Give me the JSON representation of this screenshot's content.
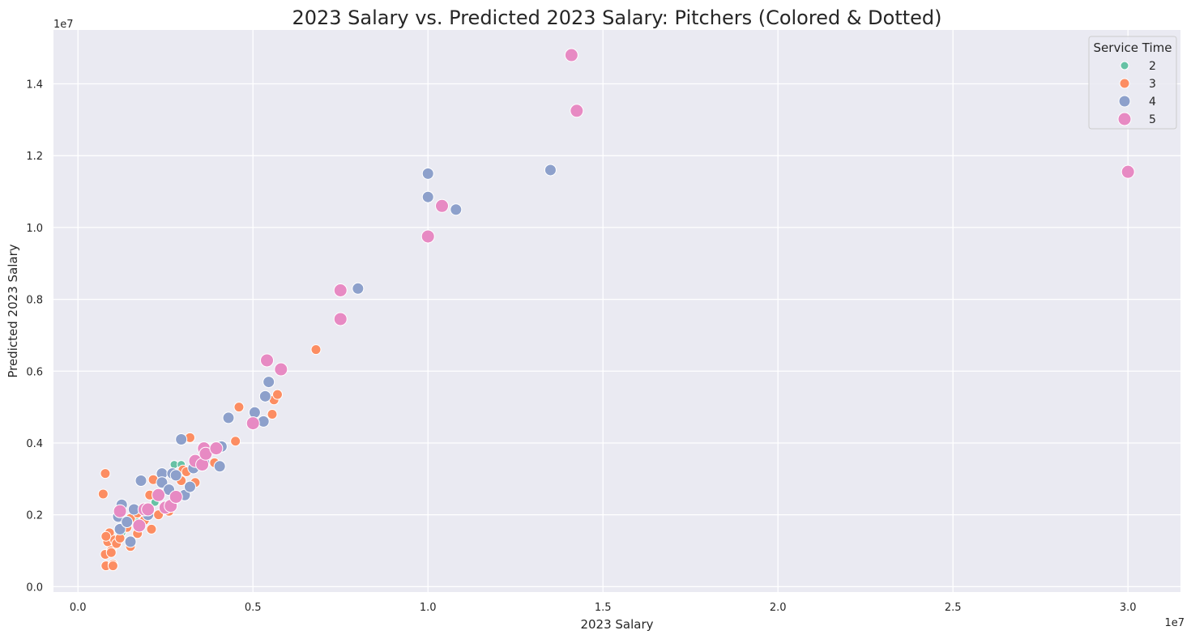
{
  "chart_data": {
    "type": "scatter",
    "title": "2023 Salary vs. Predicted 2023 Salary: Pitchers (Colored & Dotted)",
    "xlabel": "2023 Salary",
    "ylabel": "Predicted 2023 Salary",
    "x_offset_label": "1e7",
    "y_offset_label": "1e7",
    "xlim": [
      -700000,
      31500000
    ],
    "ylim": [
      -150000,
      15500000
    ],
    "x_ticks": [
      0,
      5000000,
      10000000,
      15000000,
      20000000,
      25000000,
      30000000
    ],
    "x_tick_labels": [
      "0.0",
      "0.5",
      "1.0",
      "1.5",
      "2.0",
      "2.5",
      "3.0"
    ],
    "y_ticks": [
      0,
      2000000,
      4000000,
      6000000,
      8000000,
      10000000,
      12000000,
      14000000
    ],
    "y_tick_labels": [
      "0.0",
      "0.2",
      "0.4",
      "0.6",
      "0.8",
      "1.0",
      "1.2",
      "1.4"
    ],
    "grid": true,
    "background": "#eaeaf2",
    "legend": {
      "title": "Service Time",
      "placement": "top-right",
      "entries": [
        {
          "label": "2",
          "color": "#66c2a5",
          "size": 5
        },
        {
          "label": "3",
          "color": "#fc8d62",
          "size": 6
        },
        {
          "label": "4",
          "color": "#8da0cb",
          "size": 7
        },
        {
          "label": "5",
          "color": "#e78ac3",
          "size": 8
        }
      ]
    },
    "series": [
      {
        "name": "2",
        "color": "#66c2a5",
        "size": 5,
        "points": [
          [
            830000,
            1350000
          ],
          [
            1050000,
            1150000
          ],
          [
            2200000,
            2350000
          ],
          [
            2750000,
            3400000
          ],
          [
            2950000,
            3400000
          ],
          [
            1700000,
            1800000
          ],
          [
            2050000,
            2050000
          ],
          [
            1250000,
            1500000
          ]
        ]
      },
      {
        "name": "3",
        "color": "#fc8d62",
        "size": 6,
        "points": [
          [
            780000,
            3150000
          ],
          [
            720000,
            2580000
          ],
          [
            800000,
            580000
          ],
          [
            780000,
            900000
          ],
          [
            850000,
            1250000
          ],
          [
            900000,
            1500000
          ],
          [
            950000,
            1000000
          ],
          [
            1000000,
            620000
          ],
          [
            1000000,
            580000
          ],
          [
            1050000,
            1300000
          ],
          [
            1100000,
            1200000
          ],
          [
            1200000,
            1350000
          ],
          [
            1400000,
            1650000
          ],
          [
            1500000,
            1120000
          ],
          [
            1500000,
            1900000
          ],
          [
            1700000,
            1480000
          ],
          [
            1800000,
            1700000
          ],
          [
            1900000,
            1850000
          ],
          [
            2050000,
            2550000
          ],
          [
            2100000,
            1600000
          ],
          [
            2150000,
            2980000
          ],
          [
            2300000,
            2000000
          ],
          [
            2400000,
            3100000
          ],
          [
            2600000,
            2100000
          ],
          [
            2700000,
            2300000
          ],
          [
            2950000,
            2950000
          ],
          [
            3000000,
            3250000
          ],
          [
            3100000,
            3200000
          ],
          [
            3200000,
            4150000
          ],
          [
            3350000,
            2900000
          ],
          [
            3900000,
            3450000
          ],
          [
            4500000,
            4050000
          ],
          [
            4600000,
            5000000
          ],
          [
            5550000,
            4800000
          ],
          [
            5600000,
            5200000
          ],
          [
            5700000,
            5350000
          ],
          [
            6800000,
            6600000
          ],
          [
            1700000,
            2050000
          ],
          [
            800000,
            1400000
          ],
          [
            950000,
            950000
          ]
        ]
      },
      {
        "name": "4",
        "color": "#8da0cb",
        "size": 7,
        "points": [
          [
            1150000,
            1950000
          ],
          [
            1200000,
            1600000
          ],
          [
            1250000,
            2280000
          ],
          [
            1400000,
            1800000
          ],
          [
            1500000,
            1250000
          ],
          [
            1600000,
            2150000
          ],
          [
            1800000,
            2950000
          ],
          [
            2000000,
            2000000
          ],
          [
            2400000,
            3150000
          ],
          [
            2400000,
            2900000
          ],
          [
            2600000,
            2700000
          ],
          [
            2700000,
            3150000
          ],
          [
            2800000,
            3100000
          ],
          [
            2950000,
            4100000
          ],
          [
            3050000,
            2550000
          ],
          [
            3200000,
            2780000
          ],
          [
            3300000,
            3300000
          ],
          [
            3600000,
            3450000
          ],
          [
            4050000,
            3350000
          ],
          [
            4100000,
            3900000
          ],
          [
            4300000,
            4700000
          ],
          [
            5050000,
            4850000
          ],
          [
            5300000,
            4600000
          ],
          [
            5350000,
            5300000
          ],
          [
            5450000,
            5700000
          ],
          [
            8000000,
            8300000
          ],
          [
            10000000,
            11500000
          ],
          [
            10000000,
            10850000
          ],
          [
            10800000,
            10500000
          ],
          [
            13500000,
            11600000
          ]
        ]
      },
      {
        "name": "5",
        "color": "#e78ac3",
        "size": 8,
        "points": [
          [
            1200000,
            2100000
          ],
          [
            1750000,
            1700000
          ],
          [
            1900000,
            2150000
          ],
          [
            2000000,
            2150000
          ],
          [
            2300000,
            2550000
          ],
          [
            2500000,
            2200000
          ],
          [
            2650000,
            2250000
          ],
          [
            2800000,
            2500000
          ],
          [
            3350000,
            3500000
          ],
          [
            3550000,
            3400000
          ],
          [
            3600000,
            3850000
          ],
          [
            3650000,
            3700000
          ],
          [
            3950000,
            3850000
          ],
          [
            5000000,
            4550000
          ],
          [
            5400000,
            6300000
          ],
          [
            5800000,
            6050000
          ],
          [
            7500000,
            8250000
          ],
          [
            7500000,
            7450000
          ],
          [
            10000000,
            9750000
          ],
          [
            10400000,
            10600000
          ],
          [
            14100000,
            14800000
          ],
          [
            14250000,
            13250000
          ],
          [
            30000000,
            11550000
          ]
        ]
      }
    ]
  }
}
